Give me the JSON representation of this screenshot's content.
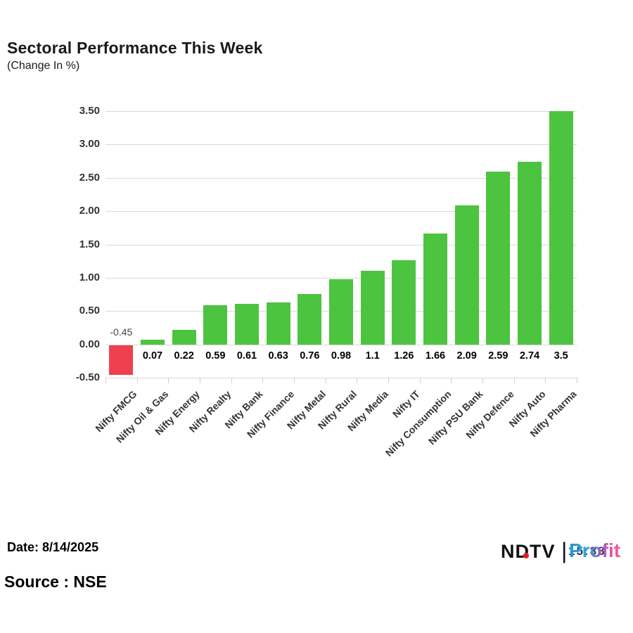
{
  "header": {
    "title": "Sectoral Performance This Week",
    "subtitle": "(Change In %)"
  },
  "footer": {
    "date_label": "Date: 8/14/2025",
    "source_label": "Source : NSE"
  },
  "logo": {
    "ndtv_text": "NDTV",
    "divider": "|",
    "profit_text": "Profit",
    "watermark_text": "15:38",
    "dot_color": "#e02020"
  },
  "chart_data": {
    "type": "bar",
    "title": "Sectoral Performance This Week",
    "subtitle": "(Change In %)",
    "xlabel": "",
    "ylabel": "Change In %",
    "categories": [
      "Nifty FMCG",
      "Nifty Oil & Gas",
      "Nifty Energy",
      "Nifty Realty",
      "Nifty Bank",
      "Nifty Finance",
      "Nifty Metal",
      "Nifty Rural",
      "Nifty Media",
      "Nifty IT",
      "Nifty Consumption",
      "Nifty PSU Bank",
      "Nifty Defence",
      "Nifty Auto",
      "Nifty Pharma"
    ],
    "values": [
      -0.45,
      0.07,
      0.22,
      0.59,
      0.61,
      0.63,
      0.76,
      0.98,
      1.1,
      1.26,
      1.66,
      2.09,
      2.59,
      2.74,
      3.5
    ],
    "value_labels": [
      "-0.45",
      "0.07",
      "0.22",
      "0.59",
      "0.61",
      "0.63",
      "0.76",
      "0.98",
      "1.1",
      "1.26",
      "1.66",
      "2.09",
      "2.59",
      "2.74",
      "3.5"
    ],
    "y_ticks": [
      {
        "value": 3.5,
        "label": "3.50"
      },
      {
        "value": 3.0,
        "label": "3.00"
      },
      {
        "value": 2.5,
        "label": "2.50"
      },
      {
        "value": 2.0,
        "label": "2.00"
      },
      {
        "value": 1.5,
        "label": "1.50"
      },
      {
        "value": 1.0,
        "label": "1.00"
      },
      {
        "value": 0.5,
        "label": "0.50"
      },
      {
        "value": 0.0,
        "label": "0.00"
      },
      {
        "value": -0.5,
        "label": "-0.50"
      }
    ],
    "ylim": [
      -0.5,
      3.5
    ],
    "grid": true,
    "legend": false,
    "colors": {
      "positive_bar": "#4cc43f",
      "negative_bar": "#ef4050",
      "gridline": "#d9d9d9"
    }
  }
}
